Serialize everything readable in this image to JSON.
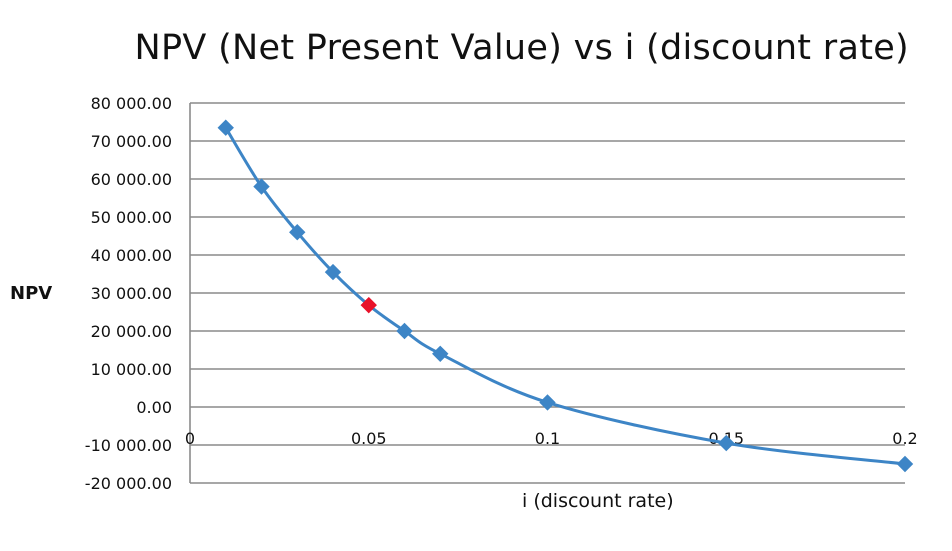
{
  "chart_data": {
    "type": "scatter",
    "title": "NPV (Net Present Value) vs i (discount rate)",
    "xlabel": "i (discount rate)",
    "ylabel": "NPV",
    "xlim": [
      0,
      0.2
    ],
    "ylim": [
      -20000,
      80000
    ],
    "xticks": [
      "0",
      "0.05",
      "0.1",
      "0.15",
      "0.2"
    ],
    "yticks": [
      "-20 000.00",
      "-10 000.00",
      "0.00",
      "10 000.00",
      "20 000.00",
      "30 000.00",
      "40 000.00",
      "50 000.00",
      "60 000.00",
      "70 000.00",
      "80 000.00"
    ],
    "grid": true,
    "line_style": "smooth",
    "series": [
      {
        "color": "#3d85c6",
        "marker": "diamond",
        "points": [
          {
            "x": 0.01,
            "y": 73500
          },
          {
            "x": 0.02,
            "y": 58000
          },
          {
            "x": 0.03,
            "y": 46000
          },
          {
            "x": 0.04,
            "y": 35500
          },
          {
            "x": 0.05,
            "y": 26800,
            "highlight": true
          },
          {
            "x": 0.06,
            "y": 20000
          },
          {
            "x": 0.07,
            "y": 14000
          },
          {
            "x": 0.1,
            "y": 1200
          },
          {
            "x": 0.15,
            "y": -9500
          },
          {
            "x": 0.2,
            "y": -15000
          }
        ]
      }
    ],
    "highlight_color": "#e8122a"
  }
}
